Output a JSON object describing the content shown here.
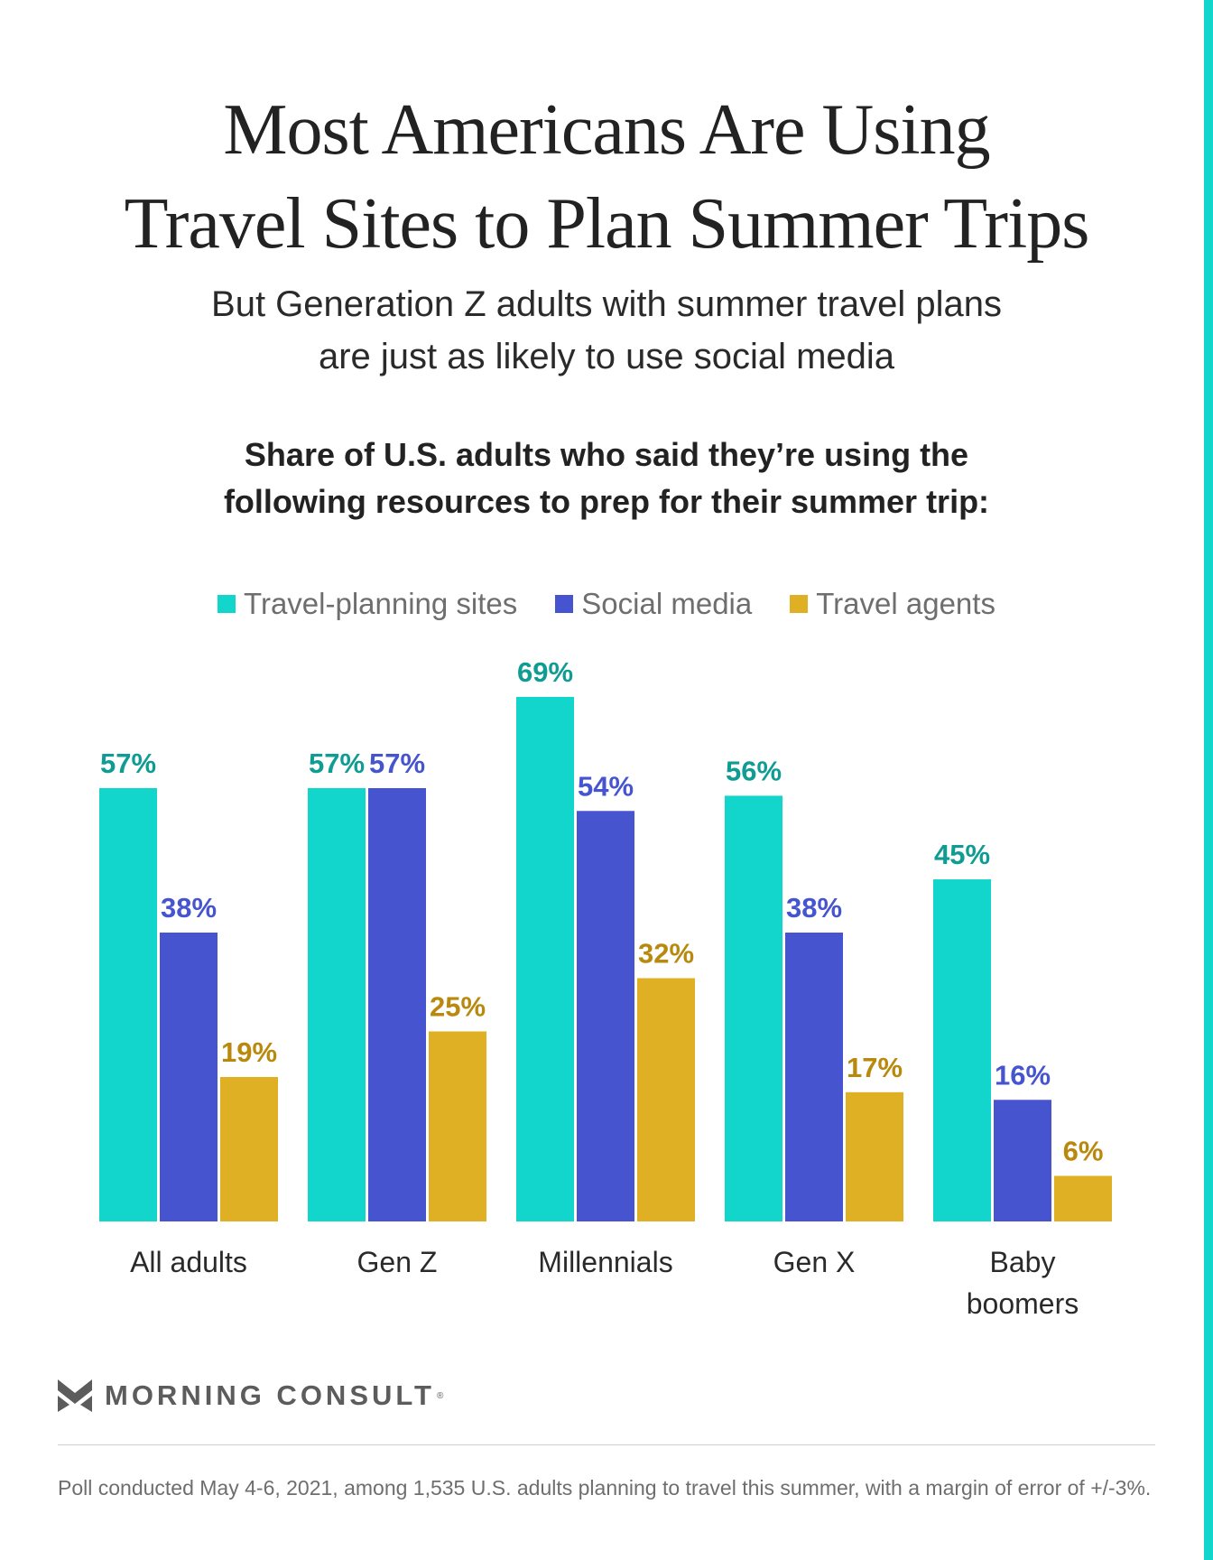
{
  "title_lines": [
    "Most Americans Are Using",
    "Travel Sites to Plan Summer Trips"
  ],
  "subtitle_lines": [
    "But Generation Z adults with summer travel plans",
    "are just as likely to use social media"
  ],
  "question_lines": [
    "Share of U.S. adults who said they’re using the",
    "following resources to prep for their summer trip:"
  ],
  "brand": {
    "name": "MORNING CONSULT",
    "reg_mark": "®"
  },
  "note": "Poll conducted May 4-6, 2021, among 1,535 U.S. adults planning to travel this summer, with a margin of error of +/-3%.",
  "colors": {
    "accent": "#12d6cc",
    "travel_sites": "#12d6cc",
    "social_media": "#4655cf",
    "travel_agents": "#e0b024",
    "travel_sites_label": "#0f9c93",
    "travel_agents_label": "#b8890d"
  },
  "chart_data": {
    "type": "bar",
    "categories": [
      [
        "All adults"
      ],
      [
        "Gen Z"
      ],
      [
        "Millennials"
      ],
      [
        "Gen X"
      ],
      [
        "Baby",
        "boomers"
      ]
    ],
    "series": [
      {
        "name": "Travel-planning sites",
        "values": [
          57,
          57,
          69,
          56,
          45
        ]
      },
      {
        "name": "Social media",
        "values": [
          38,
          57,
          54,
          38,
          16
        ]
      },
      {
        "name": "Travel agents",
        "values": [
          19,
          25,
          32,
          17,
          6
        ]
      }
    ],
    "value_suffix": "%",
    "ylim": [
      0,
      69
    ],
    "grid": false,
    "legend": "top-center"
  }
}
